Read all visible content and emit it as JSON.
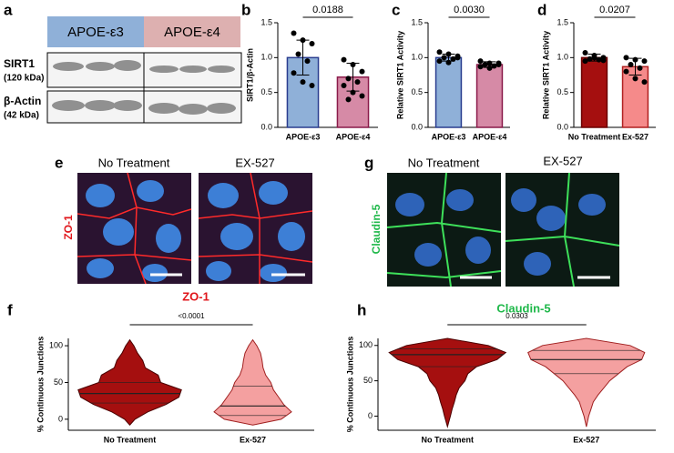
{
  "blot": {
    "panel": "a",
    "groups": [
      "APOE-ε3",
      "APOE-ε4"
    ],
    "rows": [
      {
        "name": "SIRT1",
        "size": "(120 kDa)"
      },
      {
        "name": "β-Actin",
        "size": "(42 kDa)"
      }
    ]
  },
  "images": [
    {
      "panel": "e",
      "label": "ZO-1",
      "conditions": [
        "No Treatment",
        "EX-527"
      ]
    },
    {
      "panel": "g",
      "label": "Claudin-5",
      "conditions": [
        "No Treatment",
        "EX-527"
      ]
    }
  ],
  "chart_data": [
    {
      "type": "bar",
      "panel": "b",
      "ylabel": "SIRT1/β-Actin",
      "categories": [
        "APOE-ε3",
        "APOE-ε4"
      ],
      "values": [
        1.0,
        0.72
      ],
      "errors": [
        0.25,
        0.2
      ],
      "colors": [
        "#8fb0d8",
        "#d68aa6"
      ],
      "edge_colors": [
        "#2a3d8f",
        "#8a1a4a"
      ],
      "points": [
        [
          1.35,
          1.25,
          1.2,
          1.05,
          0.95,
          0.78,
          0.65,
          0.6
        ],
        [
          0.97,
          0.9,
          0.8,
          0.7,
          0.65,
          0.6,
          0.5,
          0.45,
          0.4
        ]
      ],
      "annotation": "0.0188",
      "ylim": [
        0,
        1.5
      ],
      "yticks": [
        {
          "value": 0,
          "label": "0.0"
        },
        {
          "value": 0.5,
          "label": "0.5"
        },
        {
          "value": 1,
          "label": "1.0"
        },
        {
          "value": 1.5,
          "label": "1.5"
        }
      ]
    },
    {
      "type": "bar",
      "panel": "c",
      "ylabel": "Relative SIRT1 Activity",
      "categories": [
        "APOE-ε3",
        "APOE-ε4"
      ],
      "values": [
        1.0,
        0.9
      ],
      "errors": [
        0.05,
        0.04
      ],
      "colors": [
        "#8fb0d8",
        "#d68aa6"
      ],
      "edge_colors": [
        "#2a3d8f",
        "#8a1a4a"
      ],
      "points": [
        [
          1.08,
          1.05,
          1.02,
          1.0,
          0.98,
          0.95,
          0.93,
          1.0
        ],
        [
          0.95,
          0.92,
          0.9,
          0.9,
          0.88,
          0.87,
          0.85,
          0.92
        ]
      ],
      "annotation": "0.0030",
      "ylim": [
        0,
        1.5
      ],
      "yticks": [
        {
          "value": 0,
          "label": "0.0"
        },
        {
          "value": 0.5,
          "label": "0.5"
        },
        {
          "value": 1,
          "label": "1.0"
        },
        {
          "value": 1.5,
          "label": "1.5"
        }
      ]
    },
    {
      "type": "bar",
      "panel": "d",
      "ylabel": "Relative SIRT1 Activity",
      "categories": [
        "No Treatment",
        "Ex-527"
      ],
      "values": [
        1.0,
        0.87
      ],
      "errors": [
        0.05,
        0.12
      ],
      "colors": [
        "#a50f0f",
        "#f58a8a"
      ],
      "edge_colors": [
        "#6a0000",
        "#b02020"
      ],
      "points": [
        [
          1.07,
          1.03,
          1.0,
          0.98,
          0.97,
          0.95,
          1.0,
          0.96
        ],
        [
          1.0,
          0.97,
          0.95,
          0.9,
          0.85,
          0.8,
          0.7,
          0.65
        ]
      ],
      "annotation": "0.0207",
      "ylim": [
        0,
        1.5
      ],
      "yticks": [
        {
          "value": 0,
          "label": "0.0"
        },
        {
          "value": 0.5,
          "label": "0.5"
        },
        {
          "value": 1,
          "label": "1.0"
        },
        {
          "value": 1.5,
          "label": "1.5"
        }
      ]
    },
    {
      "type": "violin",
      "panel": "f",
      "title": "ZO-1",
      "title_color": "#e0161b",
      "ylabel": "% Continuous Junctions",
      "categories": [
        "No Treatment",
        "Ex-527"
      ],
      "colors": [
        "#a50f0f",
        "#f4a0a0"
      ],
      "edge_colors": [
        "#4a0000",
        "#a02020"
      ],
      "profile_y": [
        -8,
        0,
        10,
        20,
        30,
        40,
        50,
        60,
        70,
        80,
        90,
        100,
        108
      ],
      "profiles": [
        [
          0,
          0.1,
          0.35,
          0.7,
          0.95,
          1.0,
          0.6,
          0.55,
          0.3,
          0.25,
          0.15,
          0.08,
          0
        ],
        [
          0,
          0.55,
          0.75,
          0.6,
          0.5,
          0.4,
          0.35,
          0.25,
          0.2,
          0.18,
          0.15,
          0.08,
          0
        ]
      ],
      "medians": [
        35,
        18
      ],
      "quartiles": [
        [
          22,
          50
        ],
        [
          5,
          45
        ]
      ],
      "annotation": "<0.0001",
      "ylim": [
        -15,
        110
      ],
      "yticks": [
        0,
        50,
        100
      ]
    },
    {
      "type": "violin",
      "panel": "h",
      "title": "Claudin-5",
      "title_color": "#1fb84a",
      "ylabel": "% Continuous Junctions",
      "categories": [
        "No Treatment",
        "Ex-527"
      ],
      "colors": [
        "#a50f0f",
        "#f4a0a0"
      ],
      "edge_colors": [
        "#4a0000",
        "#a02020"
      ],
      "profile_y": [
        -15,
        0,
        10,
        20,
        30,
        40,
        50,
        60,
        70,
        80,
        90,
        100,
        110
      ],
      "profiles": [
        [
          0,
          0.05,
          0.08,
          0.12,
          0.15,
          0.2,
          0.3,
          0.35,
          0.5,
          0.85,
          1.0,
          0.7,
          0
        ],
        [
          0,
          0.04,
          0.08,
          0.12,
          0.2,
          0.3,
          0.4,
          0.55,
          0.7,
          0.95,
          1.0,
          0.75,
          0
        ]
      ],
      "medians": [
        87,
        80
      ],
      "quartiles": [
        [
          70,
          95
        ],
        [
          60,
          93
        ]
      ],
      "annotation": "0.0303",
      "ylim": [
        -20,
        110
      ],
      "yticks": [
        0,
        50,
        100
      ]
    }
  ]
}
